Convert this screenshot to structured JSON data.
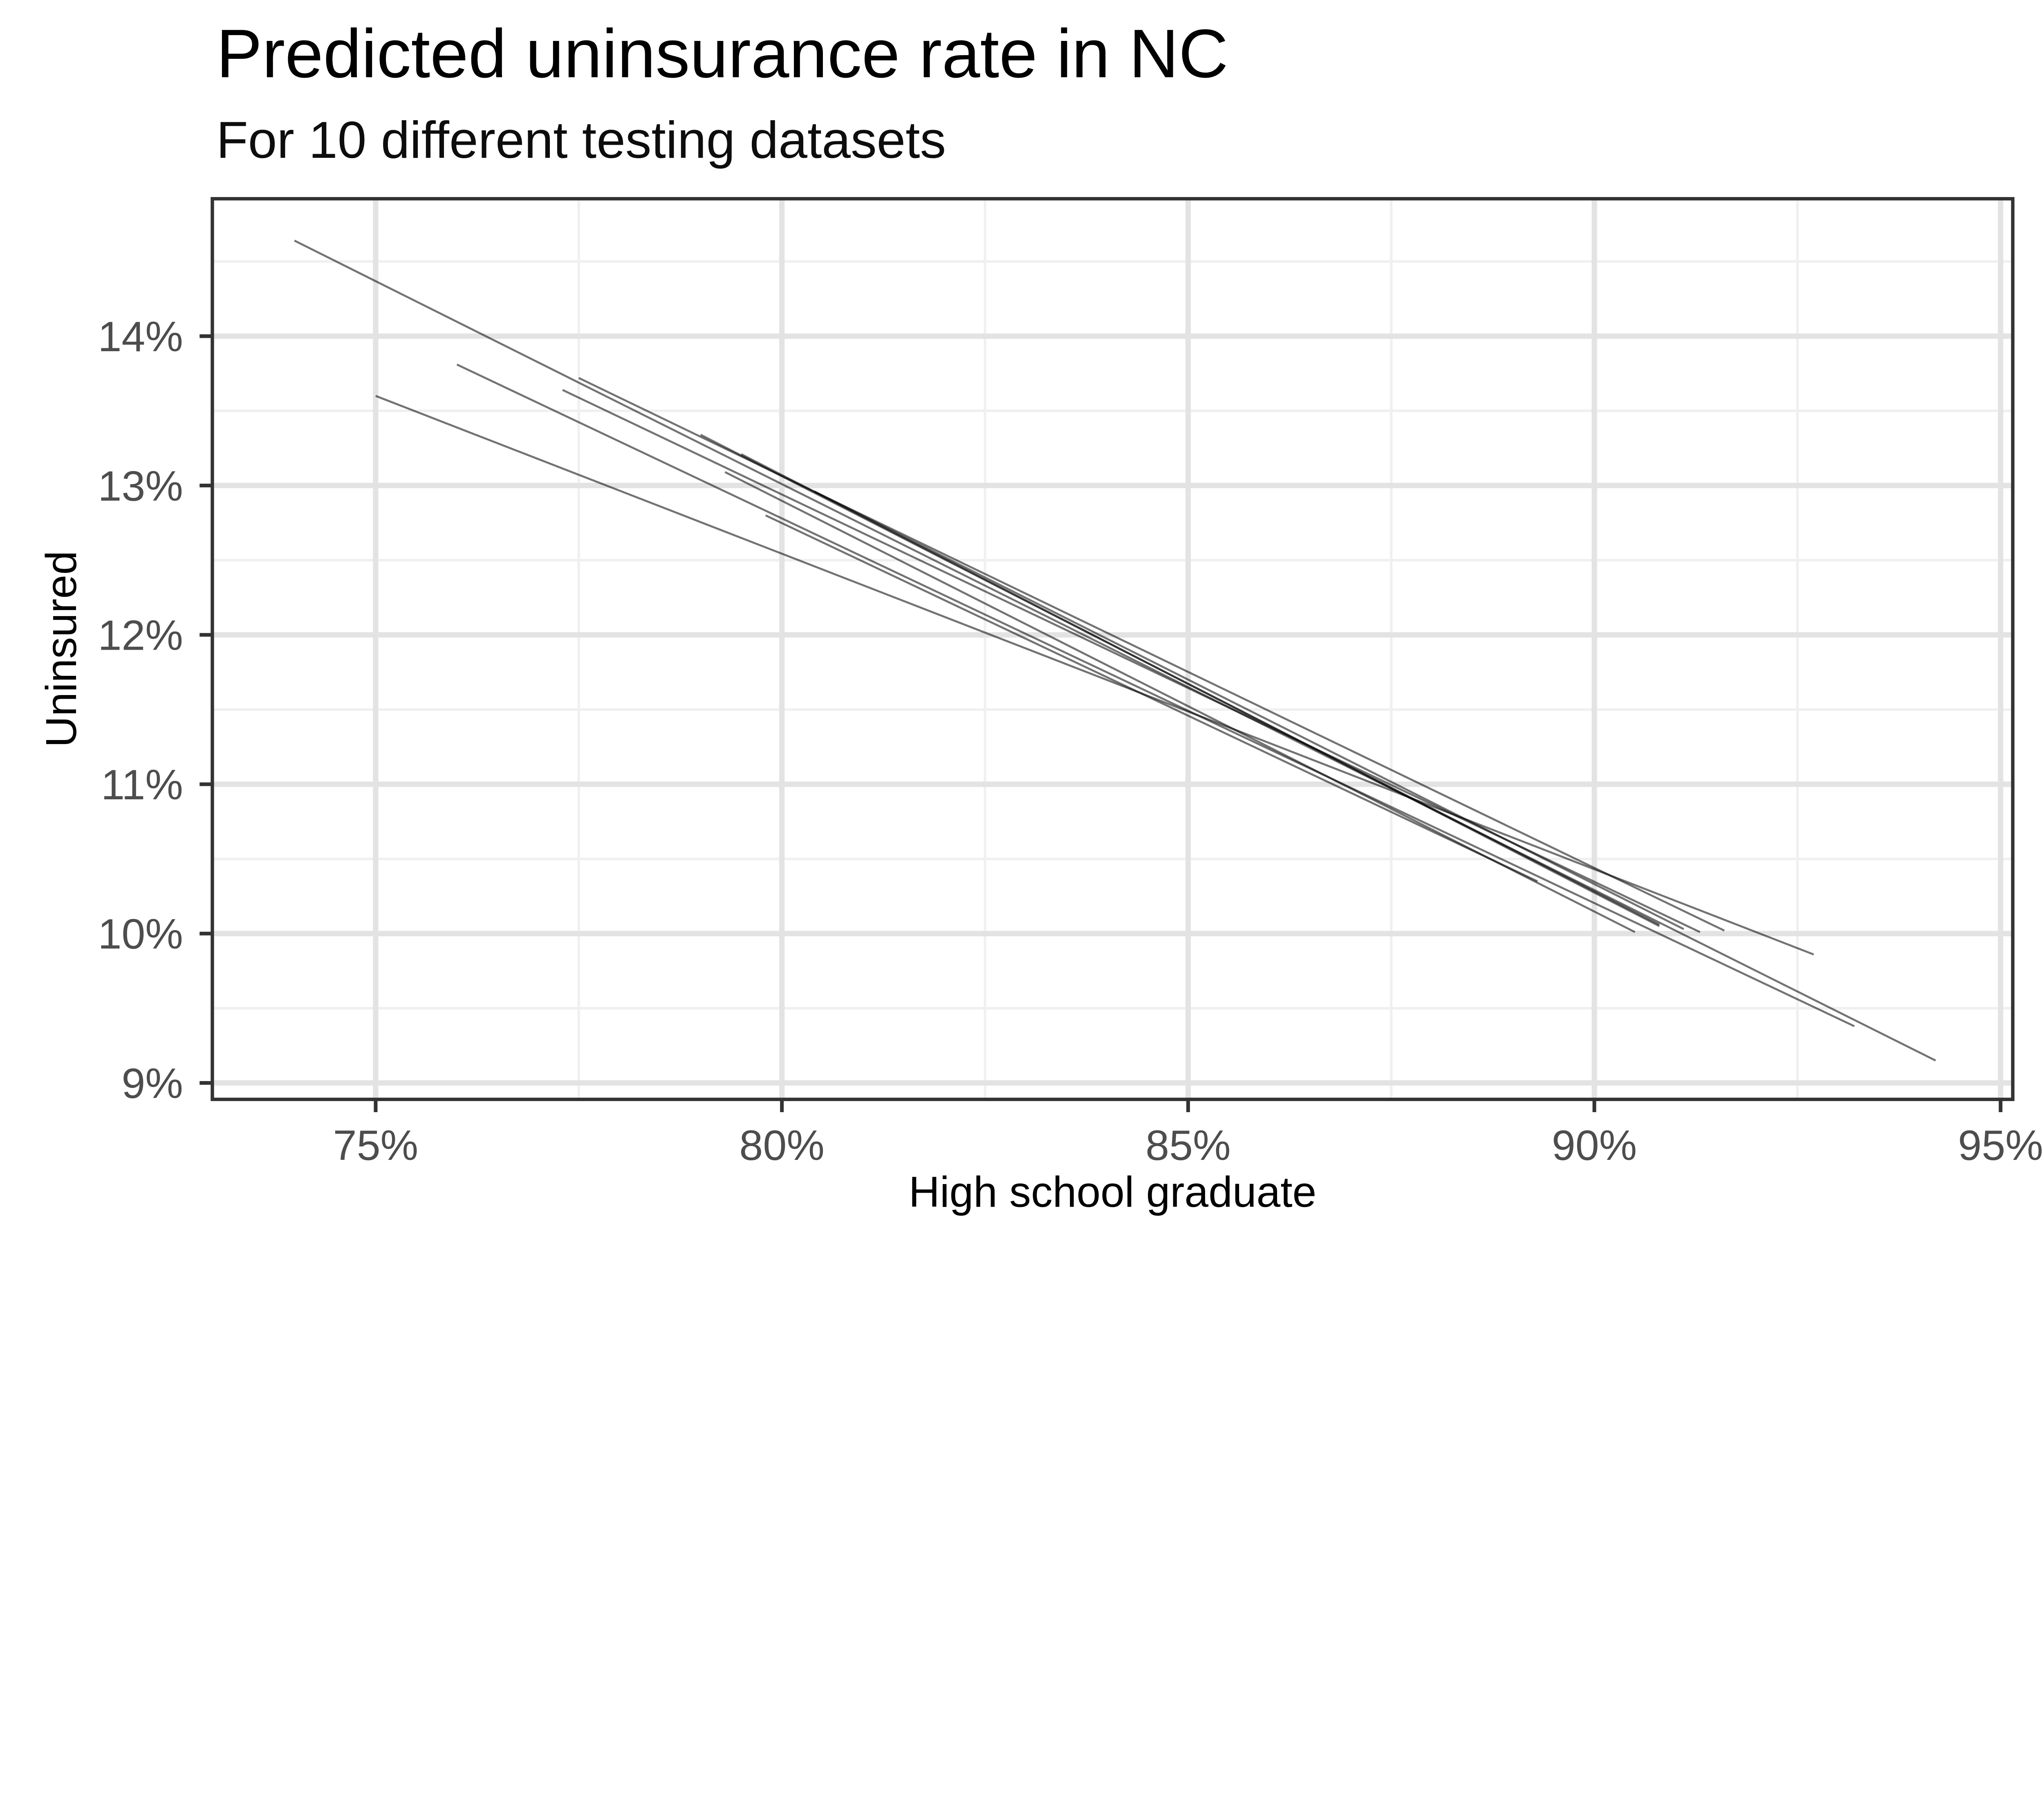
{
  "chart_data": {
    "type": "line",
    "title": "Predicted uninsurance rate in NC",
    "subtitle": "For 10 different testing datasets",
    "xlabel": "High school graduate",
    "ylabel": "Uninsured",
    "xlim": [
      72.99,
      95.15
    ],
    "ylim": [
      8.89,
      14.92
    ],
    "x_axis": {
      "major": [
        75,
        80,
        85,
        90,
        95
      ],
      "labels": [
        "75%",
        "80%",
        "85%",
        "90%",
        "95%"
      ],
      "minor": [
        77.5,
        82.5,
        87.5,
        92.5
      ]
    },
    "y_axis": {
      "major": [
        9,
        10,
        11,
        12,
        13,
        14
      ],
      "labels": [
        "9%",
        "10%",
        "11%",
        "12%",
        "13%",
        "14%"
      ],
      "minor": [
        9.5,
        10.5,
        11.5,
        12.5,
        13.5,
        14.5
      ]
    },
    "grid": "on",
    "legend": "none",
    "series": [
      {
        "x0": 74.0,
        "y0": 14.64,
        "x1": 94.2,
        "y1": 9.15
      },
      {
        "x0": 75.0,
        "y0": 13.6,
        "x1": 92.7,
        "y1": 9.86
      },
      {
        "x0": 76.0,
        "y0": 13.81,
        "x1": 93.2,
        "y1": 9.38
      },
      {
        "x0": 77.3,
        "y0": 13.64,
        "x1": 91.3,
        "y1": 10.01
      },
      {
        "x0": 77.5,
        "y0": 13.72,
        "x1": 91.6,
        "y1": 10.02
      },
      {
        "x0": 79.0,
        "y0": 13.34,
        "x1": 90.8,
        "y1": 10.06
      },
      {
        "x0": 79.3,
        "y0": 13.09,
        "x1": 90.5,
        "y1": 10.01
      },
      {
        "x0": 79.5,
        "y0": 13.21,
        "x1": 90.8,
        "y1": 10.05
      },
      {
        "x0": 79.8,
        "y0": 12.8,
        "x1": 89.3,
        "y1": 10.35
      },
      {
        "x0": 80.4,
        "y0": 12.96,
        "x1": 91.1,
        "y1": 10.03
      }
    ],
    "colors": {
      "line": "#000000",
      "line_opacity": 0.55,
      "grid_major": "#e3e3e3",
      "grid_minor": "#f0f0f0",
      "panel_border": "#333333",
      "tick_mark": "#333333",
      "tick_label": "#4d4d4d",
      "title": "#000000",
      "background": "#ffffff"
    }
  }
}
